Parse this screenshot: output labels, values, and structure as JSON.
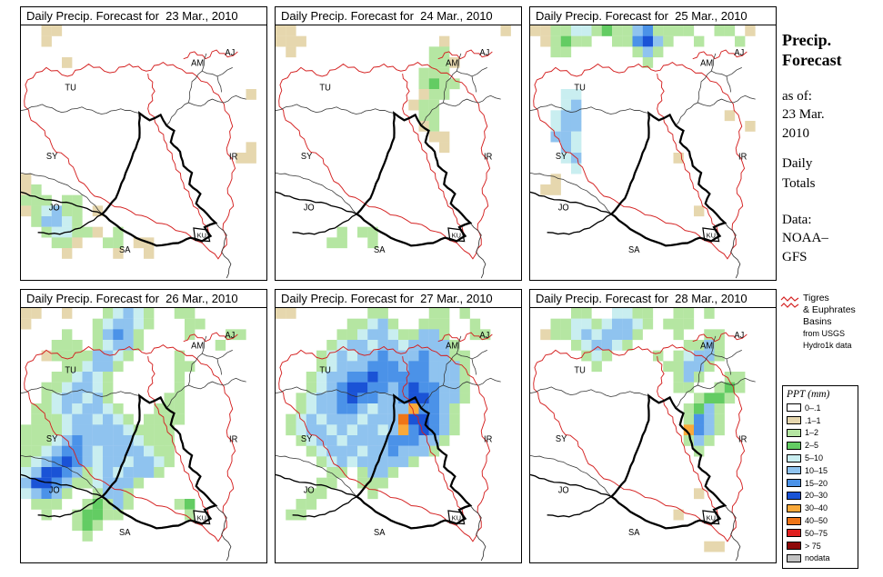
{
  "colors": {
    "basin": "#d42020",
    "border": "#333333",
    "bold_border": "#000000"
  },
  "panels": [
    {
      "title": "Daily Precip. Forecast for  23 Mar., 2010",
      "grid": [
        "..tt....................",
        "..t.....................",
        "........................",
        "....t...................",
        "........................",
        "........................",
        "......................t.",
        "........................",
        "........................",
        "........................",
        "........................",
        "......................t.",
        ".....................tt.",
        "........................",
        "t.......................",
        "tg......................",
        "ggg.gg..................",
        "tgcbgg.t................",
        ".gbbcg..................",
        "..gccggt.g..............",
        "...ggt..gg.tt...........",
        "....t....t..t...........",
        "........................",
        "........................"
      ]
    },
    {
      "title": "Daily Precip. Forecast for  24 Mar., 2010",
      "grid": [
        "tt....................t.",
        "ttt.............t.......",
        ".t.............gg.......",
        "...............ggt......",
        "..............ggg.......",
        "..............gGgg......",
        "..............tgg.......",
        ".............tgg........",
        "..............gg........",
        "..............tg........",
        "...............tt.......",
        "................t.......",
        "........................",
        "........................",
        "........................",
        "........................",
        "........................",
        "........................",
        "........................",
        "......g.gg..............",
        ".....gg..g..............",
        "........................",
        "........................"
      ]
    },
    {
      "title": "Daily Precip. Forecast for  25 Mar., 2010",
      "grid": [
        "ttggccgGggbBgggg..gg.t..",
        ".tgGgg..ggBDbg..g...g...",
        "..gg......gbg...........",
        "...........g...........",
        "........................",
        "........................",
        "...cc...................",
        "...cb...................",
        "..cbb..............t....",
        "..cbb................t..",
        "..bbc...................",
        "...bc...................",
        "...cb.........t.........",
        "....c...................",
        "..t.....................",
        ".tt.....................",
        "........................",
        "................t.......",
        "........................",
        "........................",
        "........................",
        "........................",
        "........................"
      ]
    },
    {
      "title": "Daily Precip. Forecast for  26 Mar., 2010",
      "grid": [
        "tt..t...gcbcg..gg.......",
        "t......gcbbcg...gg......",
        "....g..gbBbg....g...gg..",
        "...ggg.gcbbg.......g....",
        "..tggggbbcg....g........",
        "....ggcbbg.....gg.......",
        "...ggcbcg......g........",
        "..ggcbbcg......g........",
        "..gcbbcbg.....gg........",
        ".ggcbcbbcg...ggg........",
        ".gggcbbcbcg.gggg........",
        "ggggcbbbbbcgggg.........",
        "gggcbBbbbbbcggg.........",
        "ggcbBBbcbbbbcgg.........",
        "gcbBDBbcbbcbbcg.........",
        "cbDDBbgcbcbbbg..........",
        "bDDBbggcbbbg............",
        "cbBbg..gbbg.............",
        ".ggg..gGgbg....gG.......",
        "..g..gGGgg......g.......",
        ".....gGg................",
        "......g.................",
        "........................",
        "........................"
      ]
    },
    {
      "title": "Daily Precip. Forecast for  27 Mar., 2010",
      "grid": [
        "tt.......gg....gg.g.....",
        ".......ggcbg..ggg..g....",
        "......ggcbbcggbbg..gg...",
        ".....gcbbcbbcbbbbg......",
        "....gcbcbbBbbbBbbgg.....",
        "....gcbbbBBBbBBbbbg.....",
        "...gcbbBBDBBBBBbbbg.....",
        "...gcbBDDBBbBDBBbbg.....",
        "..gcbbBDBBbbBDDBbbg.....",
        "..gcbbBBbcbbboBBbg......",
        ".gcbcbbbcbbbODDBbg......",
        ".gcbbcbcbbcboBDBbg......",
        "..gcbbcbbbbBBBbbg.......",
        "...gcbbbcbbBbbbg........",
        "....gcbcbbbbbg..........",
        ".....gg.gbbg............",
        "....gg..ggg.............",
        "...gg....g..............",
        "..gg....................",
        ".gg.....................",
        "........................",
        "........................",
        "........................"
      ]
    },
    {
      "title": "Daily Precip. Forecast for  28 Mar., 2010",
      "grid": [
        "....gg..ccgg..gg.g......",
        "..ggccgcbbcg.ggg........",
        ".tggcbcbbbg...g..gg.....",
        "....gcbbcg.....ggbg.....",
        ".....gcg....g.gcbbg.....",
        "......g......ggbbg......",
        "..............gbg..gg...",
        "..............gg..gGg...",
        "................gGGg....",
        "...............gGbg.....",
        "...............gBbg.....",
        "...............oBbg.....",
        "...............gbg......",
        "................g.......",
        "........................",
        "........................",
        "........................",
        "................t.......",
        "........................",
        "..............t.........",
        "........................",
        "........................",
        ".................tt.....",
        "........................"
      ]
    }
  ],
  "map_labels": [
    "AM",
    "AJ",
    "TU",
    "SY",
    "IR",
    "JO",
    "SA",
    "KU"
  ],
  "sidebar": {
    "title_lines": [
      "Precip.",
      "Forecast"
    ],
    "asof": {
      "label": "as of:",
      "lines": [
        "23 Mar.",
        "2010"
      ]
    },
    "totals_lines": [
      "Daily",
      "Totals"
    ],
    "data": {
      "label": "Data:",
      "lines": [
        "NOAA–",
        "GFS"
      ]
    },
    "basins_note_lines": [
      "Tigres",
      "& Euphrates",
      "Basins"
    ],
    "basins_src_lines": [
      "from USGS",
      "Hydro1k data"
    ],
    "legend": {
      "title": "PPT (mm)",
      "entries": [
        {
          "label": "0–.1",
          "color": "#ffffff",
          "key": "w"
        },
        {
          "label": ".1–1",
          "color": "#e6d7ae",
          "key": "t"
        },
        {
          "label": "1–2",
          "color": "#b5e6a2",
          "key": "g"
        },
        {
          "label": "2–5",
          "color": "#63cc63",
          "key": "G"
        },
        {
          "label": "5–10",
          "color": "#c9eef0",
          "key": "c"
        },
        {
          "label": "10–15",
          "color": "#8fc3ef",
          "key": "b"
        },
        {
          "label": "15–20",
          "color": "#4b92e8",
          "key": "B"
        },
        {
          "label": "20–30",
          "color": "#1a53d6",
          "key": "D"
        },
        {
          "label": "30–40",
          "color": "#f9a93a",
          "key": "o"
        },
        {
          "label": "40–50",
          "color": "#ef7517",
          "key": "O"
        },
        {
          "label": "50–75",
          "color": "#e02020",
          "key": "r"
        },
        {
          "label": "> 75",
          "color": "#8f0a0a",
          "key": "R"
        },
        {
          "label": "nodata",
          "color": "#c2c2c2",
          "key": "n"
        }
      ]
    }
  }
}
